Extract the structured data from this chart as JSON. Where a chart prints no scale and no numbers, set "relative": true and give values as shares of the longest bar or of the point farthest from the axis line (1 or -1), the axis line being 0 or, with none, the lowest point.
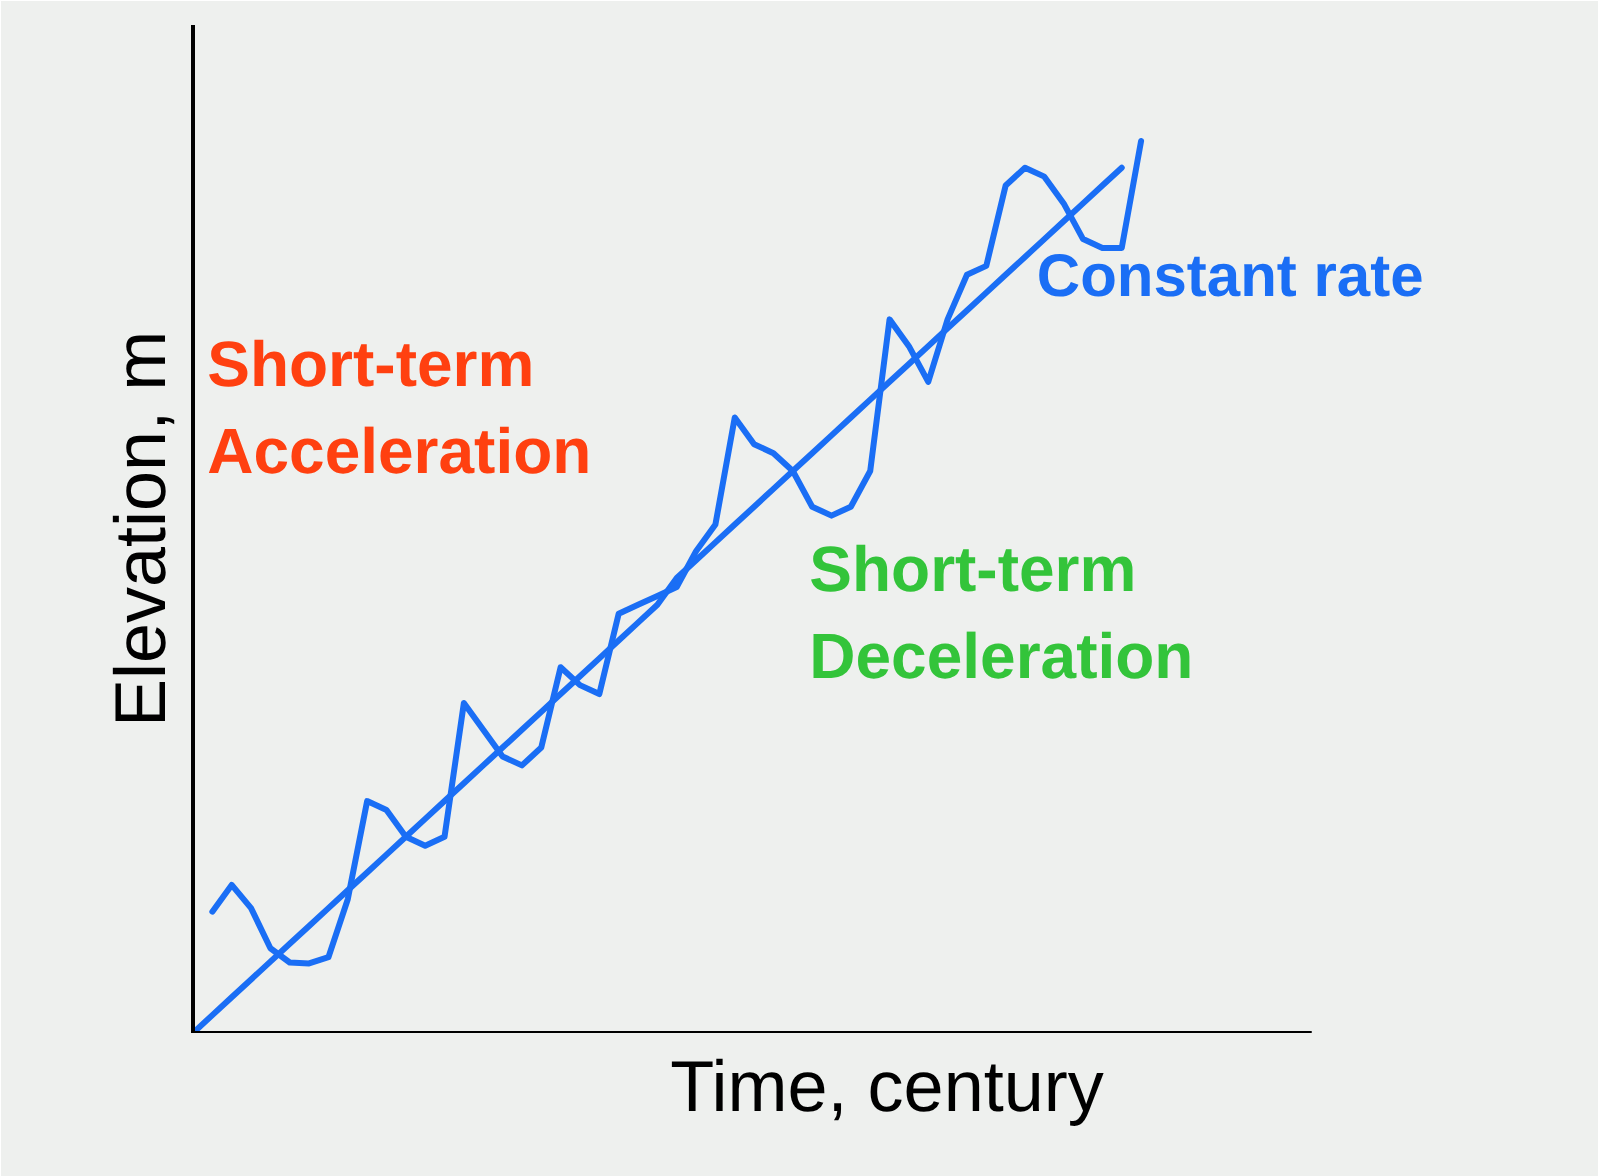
{
  "chart_data": {
    "type": "line",
    "relative": true,
    "xlabel": "Time, century",
    "ylabel": "Elevation, m",
    "annotations": [
      "Short-term\nAcceleration",
      "Short-term\nDeceleration"
    ],
    "categories": [
      null,
      null,
      null,
      null,
      null,
      null,
      null,
      null,
      null,
      null,
      null,
      null,
      null,
      null,
      null,
      null,
      null,
      null,
      null,
      null,
      null,
      null,
      null,
      null,
      null,
      null,
      null,
      null,
      null,
      null,
      null,
      null,
      null,
      null,
      null,
      null,
      null,
      null,
      null,
      null,
      null,
      null,
      null,
      null,
      null,
      null,
      null,
      null,
      null,
      null
    ],
    "series": [
      {
        "name": "Constant rate",
        "color": "#1a6ef5",
        "values": [
          0,
          0.02,
          0.04,
          0.06,
          0.08,
          0.1,
          0.12,
          0.14,
          0.16,
          0.18,
          0.2,
          0.22,
          0.24,
          0.26,
          0.28,
          0.3,
          0.32,
          0.34,
          0.36,
          0.38,
          0.4,
          0.42,
          0.44,
          0.46,
          0.48,
          0.51,
          0.53,
          0.55,
          0.57,
          0.59,
          0.61,
          0.63,
          0.65,
          0.67,
          0.69,
          0.71,
          0.73,
          0.75,
          0.77,
          0.79,
          0.81,
          0.83,
          0.85,
          0.87,
          0.89,
          0.91,
          0.93,
          0.95,
          0.97,
          null
        ]
      },
      {
        "color": "#1a6ef5",
        "values": [
          null,
          0.136,
          0.166,
          0.14,
          0.095,
          0.079,
          0.078,
          0.085,
          0.15,
          0.26,
          0.25,
          0.22,
          0.21,
          0.22,
          0.37,
          0.34,
          0.31,
          0.3,
          0.32,
          0.41,
          0.39,
          0.38,
          0.47,
          0.48,
          0.49,
          0.5,
          0.54,
          0.57,
          0.69,
          0.66,
          0.65,
          0.63,
          0.59,
          0.58,
          0.59,
          0.63,
          0.8,
          0.77,
          0.73,
          0.8,
          0.85,
          0.86,
          0.95,
          0.97,
          0.96,
          0.93,
          0.89,
          0.88,
          0.88,
          1.0
        ]
      }
    ],
    "legend": false,
    "grid": false
  }
}
